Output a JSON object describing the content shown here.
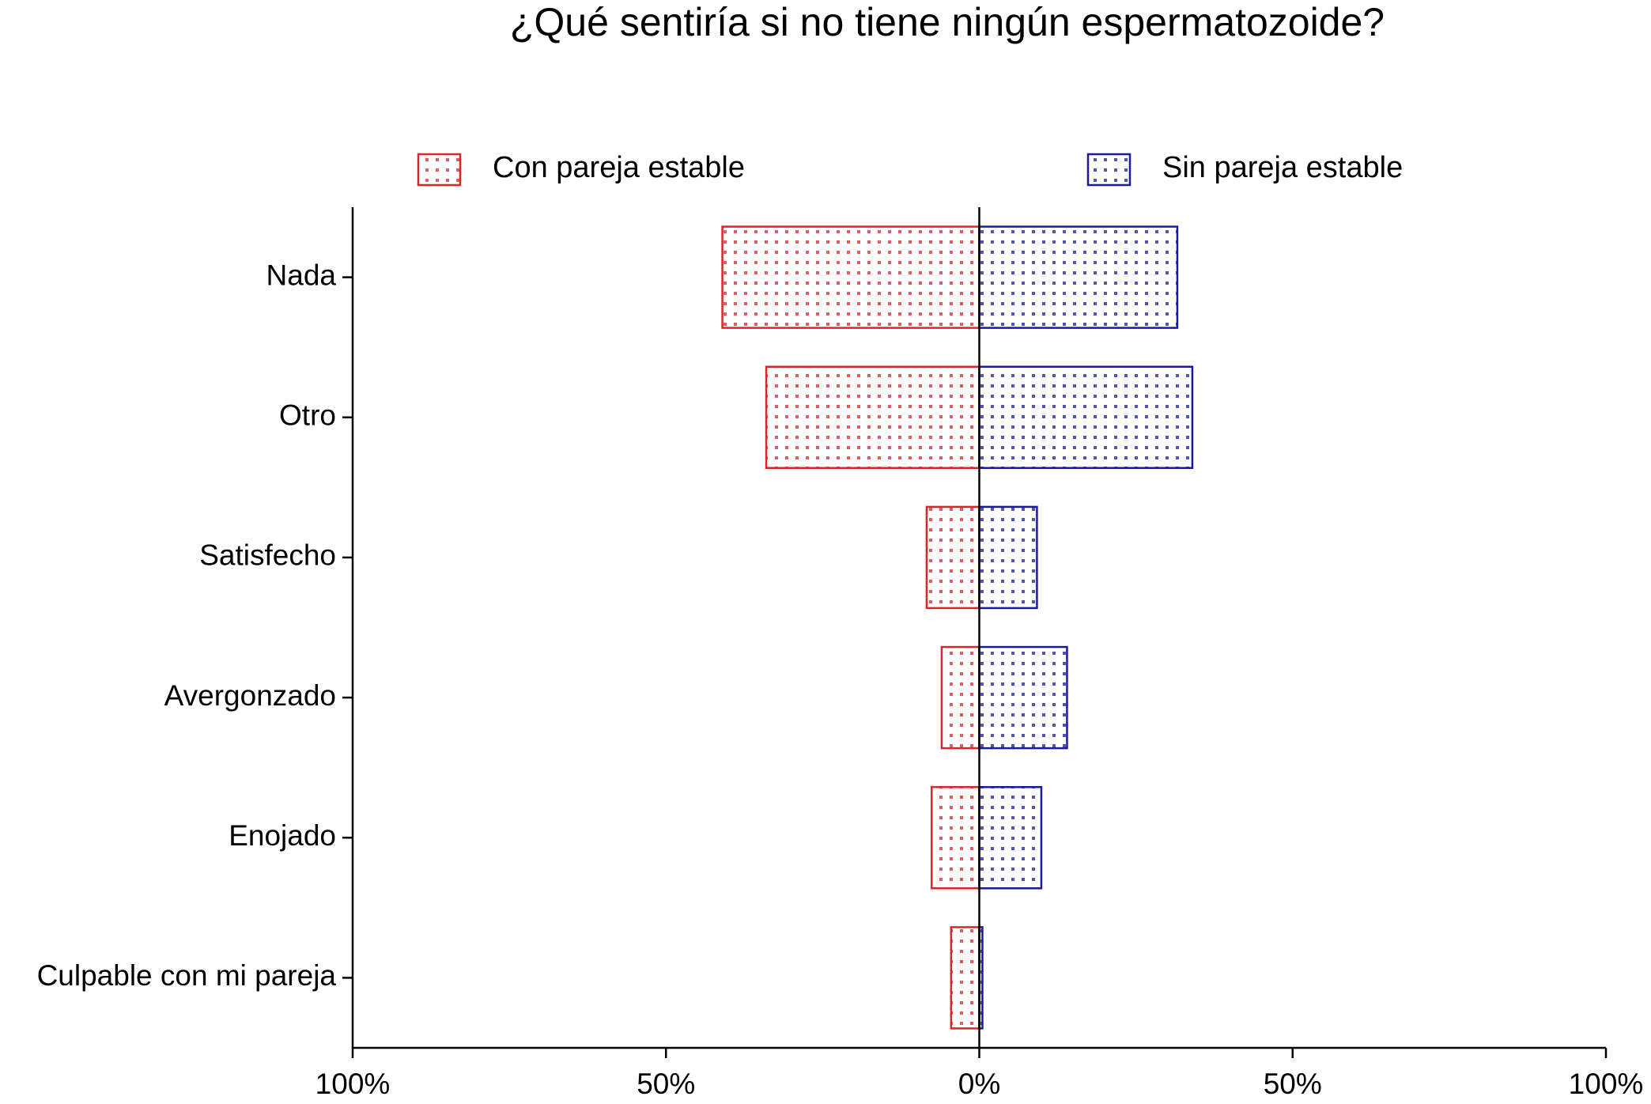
{
  "chart_data": {
    "type": "butterfly-bar",
    "title": "¿Qué sentiría si no tiene ningún espermatozoide?",
    "categories": [
      "Nada",
      "Otro",
      "Satisfecho",
      "Avergonzado",
      "Enojado",
      "Culpable con mi pareja"
    ],
    "series": [
      {
        "name": "Con pareja estable",
        "color": "#d9262a",
        "values": [
          -41,
          -34,
          -8.4,
          -6,
          -7.6,
          -4.5
        ]
      },
      {
        "name": "Sin pareja estable",
        "color": "#1b1b9a",
        "values": [
          31.6,
          34,
          9.2,
          14,
          9.9,
          0.5
        ]
      }
    ],
    "xlim": [
      -100,
      100
    ],
    "xticks": [
      {
        "value": -100,
        "label": "100%"
      },
      {
        "value": -50,
        "label": "50%"
      },
      {
        "value": 0,
        "label": "0%"
      },
      {
        "value": 50,
        "label": "50%"
      },
      {
        "value": 100,
        "label": "100%"
      }
    ],
    "grid": false
  }
}
